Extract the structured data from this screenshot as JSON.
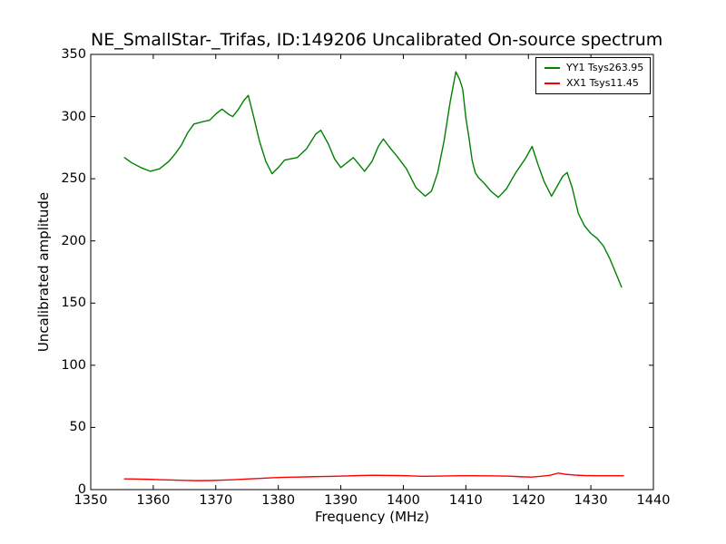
{
  "figure": {
    "title": "NE_SmallStar-_Trifas, ID:149206 Uncalibrated On-source spectrum",
    "xlabel": "Frequency (MHz)",
    "ylabel": "Uncalibrated amplitude",
    "background_color": "#ffffff",
    "axes_color": "#000000"
  },
  "legend": {
    "position": "upper right",
    "entries": [
      {
        "label": "YY1 Tsys263.95",
        "color": "#008000"
      },
      {
        "label": "XX1 Tsys11.45",
        "color": "#ff0000"
      }
    ]
  },
  "chart_data": {
    "type": "line",
    "title": "NE_SmallStar-_Trifas, ID:149206 Uncalibrated On-source spectrum",
    "xlabel": "Frequency (MHz)",
    "ylabel": "Uncalibrated amplitude",
    "xlim": [
      1350,
      1440
    ],
    "ylim": [
      0,
      350
    ],
    "xticks": [
      1350,
      1360,
      1370,
      1380,
      1390,
      1400,
      1410,
      1420,
      1430,
      1440
    ],
    "yticks": [
      0,
      50,
      100,
      150,
      200,
      250,
      300,
      350
    ],
    "grid": false,
    "legend_position": "upper right",
    "series": [
      {
        "name": "YY1 Tsys263.95",
        "color": "#008000",
        "x": [
          1355.4,
          1356.5,
          1358,
          1359.5,
          1361,
          1362.5,
          1363.5,
          1364.5,
          1365.5,
          1366.5,
          1368,
          1369,
          1370,
          1371,
          1372,
          1372.7,
          1373.5,
          1374.5,
          1375.2,
          1376,
          1377,
          1378,
          1379,
          1380,
          1381,
          1382,
          1383,
          1384.5,
          1386,
          1386.8,
          1388,
          1389,
          1390,
          1391,
          1392,
          1393,
          1393.8,
          1395,
          1396,
          1396.8,
          1398,
          1399,
          1400.5,
          1402,
          1403.5,
          1404.5,
          1405.5,
          1406.5,
          1407.5,
          1408.4,
          1409,
          1409.5,
          1410,
          1410.5,
          1411,
          1411.5,
          1412,
          1413,
          1414,
          1415.2,
          1416.5,
          1418,
          1419.5,
          1420.6,
          1421.5,
          1422.5,
          1423.7,
          1424.5,
          1425.5,
          1426.2,
          1427,
          1428,
          1429,
          1430,
          1431,
          1432,
          1433,
          1434,
          1434.9
        ],
        "y": [
          267,
          263,
          259,
          256,
          258,
          264,
          270,
          277,
          287,
          294,
          296,
          297,
          302,
          306,
          302,
          300,
          305,
          313,
          317,
          301,
          280,
          264,
          254,
          259,
          265,
          266,
          267,
          274,
          286,
          289,
          278,
          266,
          259,
          263,
          267,
          261,
          256,
          264,
          276,
          282,
          274,
          268,
          258,
          243,
          236,
          240,
          255,
          280,
          312,
          336,
          330,
          322,
          299,
          283,
          265,
          255,
          251,
          246,
          240,
          235,
          242,
          255,
          266,
          276,
          262,
          248,
          236,
          243,
          252,
          255,
          243,
          222,
          212,
          206,
          202,
          196,
          186,
          174,
          163
        ]
      },
      {
        "name": "XX1 Tsys11.45",
        "color": "#ff0000",
        "x": [
          1355.4,
          1357,
          1359,
          1361,
          1363,
          1365,
          1367,
          1369,
          1371,
          1373,
          1375,
          1377,
          1379,
          1381,
          1383,
          1385,
          1387,
          1389,
          1391,
          1393,
          1395,
          1397,
          1399,
          1401,
          1403,
          1405,
          1407,
          1409,
          1411,
          1413,
          1415,
          1417,
          1419,
          1420.5,
          1422,
          1423.5,
          1424.8,
          1426,
          1427.5,
          1429,
          1431,
          1433,
          1435.2
        ],
        "y": [
          8.6,
          8.5,
          8.3,
          8.0,
          7.7,
          7.4,
          7.2,
          7.3,
          7.6,
          8.0,
          8.5,
          9.0,
          9.5,
          9.9,
          10.1,
          10.3,
          10.5,
          10.7,
          11.0,
          11.3,
          11.5,
          11.4,
          11.3,
          11.1,
          10.7,
          10.8,
          11.0,
          11.2,
          11.2,
          11.1,
          11.0,
          10.8,
          10.3,
          10.1,
          10.7,
          11.5,
          13.3,
          12.3,
          11.6,
          11.3,
          11.2,
          11.2,
          11.2
        ]
      }
    ]
  }
}
